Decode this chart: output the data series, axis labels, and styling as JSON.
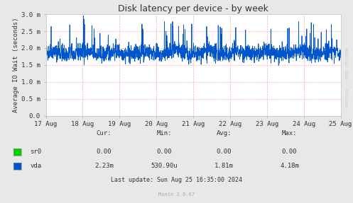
{
  "title": "Disk latency per device - by week",
  "ylabel": "Average IO Wait (seconds)",
  "fig_bg_color": "#e8e8e8",
  "plot_bg_color": "#ffffff",
  "grid_color": "#ff9999",
  "x_tick_labels": [
    "17 Aug",
    "18 Aug",
    "19 Aug",
    "20 Aug",
    "21 Aug",
    "22 Aug",
    "23 Aug",
    "24 Aug",
    "25 Aug"
  ],
  "y_tick_labels": [
    "0.0",
    "0.5 m",
    "1.0 m",
    "1.5 m",
    "2.0 m",
    "2.5 m",
    "3.0 m"
  ],
  "y_values": [
    0.0,
    0.0005,
    0.001,
    0.0015,
    0.002,
    0.0025,
    0.003
  ],
  "ylim": [
    0.0,
    0.003
  ],
  "line_color_vda": "#0055cc",
  "legend_sr0_color": "#00cc00",
  "legend_vda_color": "#0055cc",
  "footer_text": "Last update: Sun Aug 25 16:35:00 2024",
  "munin_text": "Munin 2.0.67",
  "watermark": "RRDTOOL / TOBI OETIKER",
  "table_headers": [
    "Cur:",
    "Min:",
    "Avg:",
    "Max:"
  ],
  "sr0_values": [
    "0.00",
    "0.00",
    "0.00",
    "0.00"
  ],
  "vda_values": [
    "2.23m",
    "530.90u",
    "1.81m",
    "4.18m"
  ],
  "num_points": 2016,
  "seed": 42
}
